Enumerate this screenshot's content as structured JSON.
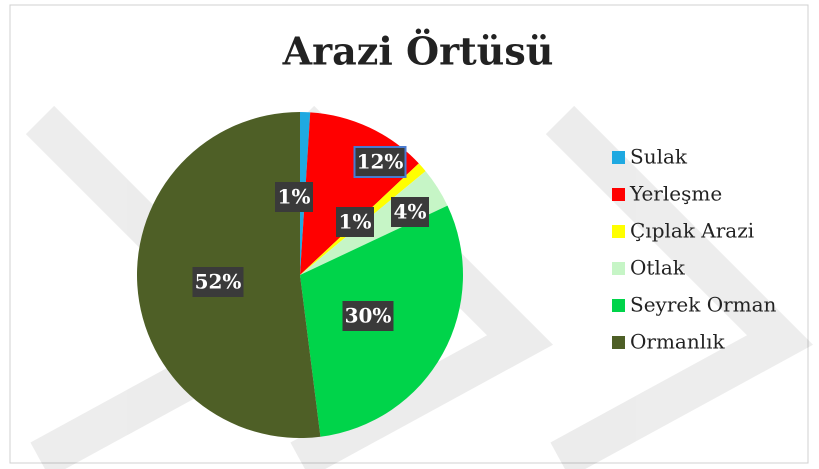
{
  "chart_data": {
    "type": "pie",
    "title": "Arazi Örtüsü",
    "categories": [
      "Sulak",
      "Yerleşme",
      "Çıplak Arazi",
      "Otlak",
      "Seyrek Orman",
      "Ormanlık"
    ],
    "values": [
      1,
      12,
      1,
      4,
      30,
      52
    ],
    "value_labels": [
      "1%",
      "12%",
      "1%",
      "4%",
      "30%",
      "52%"
    ],
    "colors": [
      "#1fa9e1",
      "#ff0000",
      "#ffff00",
      "#c6f5c6",
      "#00d44a",
      "#4e5f26"
    ],
    "legend": "right"
  }
}
